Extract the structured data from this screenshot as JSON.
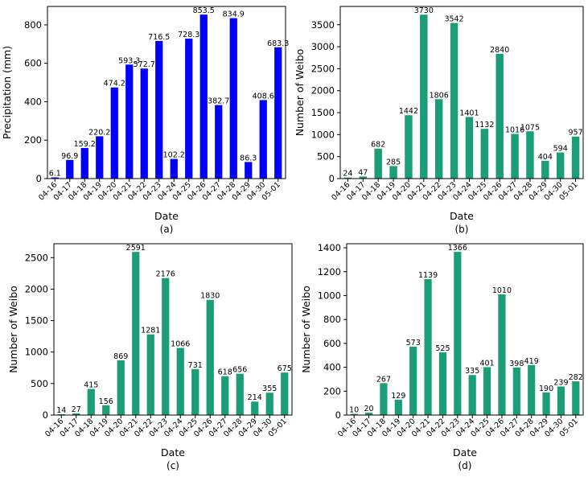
{
  "chart_data": [
    {
      "type": "bar",
      "panel_label": "(a)",
      "xlabel": "Date",
      "ylabel": "Precipitation (mm)",
      "color": "#0000ff",
      "categories": [
        "04-16",
        "04-17",
        "04-18",
        "04-19",
        "04-20",
        "04-21",
        "04-22",
        "04-23",
        "04-24",
        "04-25",
        "04-26",
        "04-27",
        "04-28",
        "04-29",
        "04-30",
        "05-01"
      ],
      "values": [
        6.1,
        96.9,
        159.2,
        220.2,
        474.2,
        593.3,
        572.7,
        716.5,
        102.2,
        728.3,
        853.5,
        382.7,
        834.9,
        86.3,
        408.6,
        683.3
      ],
      "value_labels": [
        "6.1",
        "96.9",
        "159.2",
        "220.2",
        "474.2",
        "593.3",
        "572.7",
        "716.5",
        "102.2",
        "728.3",
        "853.5",
        "382.7",
        "834.9",
        "86.3",
        "408.6",
        "683.3"
      ],
      "ylim": [
        0,
        896
      ],
      "yticks": [
        0,
        200,
        400,
        600,
        800
      ]
    },
    {
      "type": "bar",
      "panel_label": "(b)",
      "xlabel": "Date",
      "ylabel": "Number of Weibo",
      "color": "#1b9e77",
      "categories": [
        "04-16",
        "04-17",
        "04-18",
        "04-19",
        "04-20",
        "04-21",
        "04-22",
        "04-23",
        "04-24",
        "04-25",
        "04-26",
        "04-27",
        "04-28",
        "04-29",
        "04-30",
        "05-01"
      ],
      "values": [
        24,
        47,
        682,
        285,
        1442,
        3730,
        1806,
        3542,
        1401,
        1132,
        2840,
        1016,
        1075,
        404,
        594,
        957
      ],
      "value_labels": [
        "24",
        "47",
        "682",
        "285",
        "1442",
        "3730",
        "1806",
        "3542",
        "1401",
        "1132",
        "2840",
        "1016",
        "1075",
        "404",
        "594",
        "957"
      ],
      "ylim": [
        0,
        3917
      ],
      "yticks": [
        0,
        500,
        1000,
        1500,
        2000,
        2500,
        3000,
        3500
      ]
    },
    {
      "type": "bar",
      "panel_label": "(c)",
      "xlabel": "Date",
      "ylabel": "Number of Weibo",
      "color": "#1b9e77",
      "categories": [
        "04-16",
        "04-17",
        "04-18",
        "04-19",
        "04-20",
        "04-21",
        "04-22",
        "04-23",
        "04-24",
        "04-25",
        "04-26",
        "04-27",
        "04-28",
        "04-29",
        "04-30",
        "05-01"
      ],
      "values": [
        14,
        27,
        415,
        156,
        869,
        2591,
        1281,
        2176,
        1066,
        731,
        1830,
        618,
        656,
        214,
        355,
        675
      ],
      "value_labels": [
        "14",
        "27",
        "415",
        "156",
        "869",
        "2591",
        "1281",
        "2176",
        "1066",
        "731",
        "1830",
        "618",
        "656",
        "214",
        "355",
        "675"
      ],
      "ylim": [
        0,
        2721
      ],
      "yticks": [
        0,
        500,
        1000,
        1500,
        2000,
        2500
      ]
    },
    {
      "type": "bar",
      "panel_label": "(d)",
      "xlabel": "Date",
      "ylabel": "Number of Weibo",
      "color": "#1b9e77",
      "categories": [
        "04-16",
        "04-17",
        "04-18",
        "04-19",
        "04-20",
        "04-21",
        "04-22",
        "04-23",
        "04-24",
        "04-25",
        "04-26",
        "04-27",
        "04-28",
        "04-29",
        "04-30",
        "05-01"
      ],
      "values": [
        10,
        20,
        267,
        129,
        573,
        1139,
        525,
        1366,
        335,
        401,
        1010,
        398,
        419,
        190,
        239,
        282
      ],
      "value_labels": [
        "10",
        "20",
        "267",
        "129",
        "573",
        "1139",
        "525",
        "1366",
        "335",
        "401",
        "1010",
        "398",
        "419",
        "190",
        "239",
        "282"
      ],
      "ylim": [
        0,
        1434
      ],
      "yticks": [
        0,
        200,
        400,
        600,
        800,
        1000,
        1200,
        1400
      ]
    }
  ]
}
